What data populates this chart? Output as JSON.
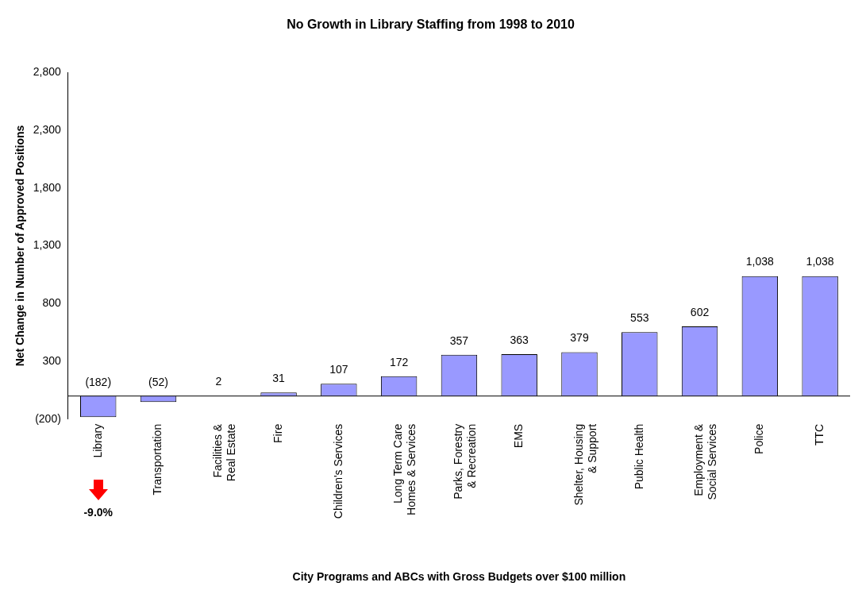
{
  "chart_data": {
    "type": "bar",
    "title": "No Growth in Library Staffing from 1998 to 2010",
    "xlabel": "City Programs and ABCs with Gross Budgets over $100 million",
    "ylabel": "Net Change in Number of Approved Positions",
    "categories": [
      "Library",
      "Transportation",
      "Facilities &\nReal Estate",
      "Fire",
      "Children's Services",
      "Long Term Care\nHomes & Services",
      "Parks, Forestry\n& Recreation",
      "EMS",
      "Shelter, Housing\n& Support",
      "Public Health",
      "Employment &\nSocial Services",
      "Police",
      "TTC"
    ],
    "values": [
      -182,
      -52,
      2,
      31,
      107,
      172,
      357,
      363,
      379,
      553,
      602,
      1038,
      1038
    ],
    "value_labels": [
      "(182)",
      "(52)",
      "2",
      "31",
      "107",
      "172",
      "357",
      "363",
      "379",
      "553",
      "602",
      "1,038",
      "1,038"
    ],
    "color": "#9999ff",
    "ylim": [
      -200,
      2800
    ],
    "yticks": [
      {
        "value": -200,
        "label": "(200)"
      },
      300,
      800,
      {
        "value": 1300,
        "label": "1,300"
      },
      {
        "value": 1800,
        "label": "1,800"
      },
      {
        "value": 2300,
        "label": "2,300"
      },
      {
        "value": 2800,
        "label": "2,800"
      }
    ],
    "grid": false,
    "legend": false,
    "annotations": [
      "-9.0%"
    ]
  }
}
